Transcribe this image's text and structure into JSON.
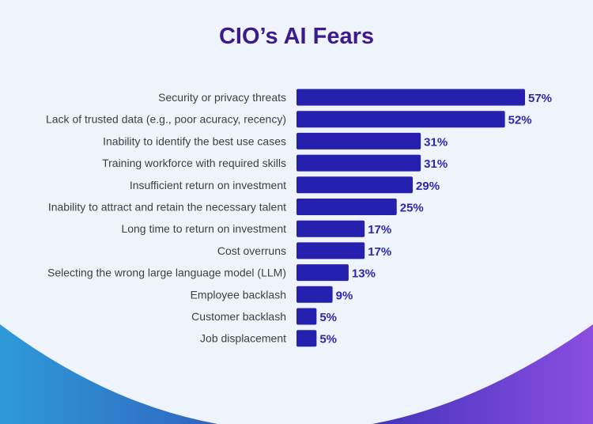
{
  "chart_data": {
    "type": "bar",
    "orientation": "horizontal",
    "title": "CIO’s AI Fears",
    "categories": [
      "Security or privacy threats",
      "Lack of trusted data (e.g., poor acuracy, recency)",
      "Inability to identify the best use cases",
      "Training workforce with required skills",
      "Insufficient return on investment",
      "Inability to attract and retain the necessary talent",
      "Long time to return on investment",
      "Cost overruns",
      "Selecting the wrong large language model (LLM)",
      "Employee backlash",
      "Customer backlash",
      "Job displacement"
    ],
    "values": [
      57,
      52,
      31,
      31,
      29,
      25,
      17,
      17,
      13,
      9,
      5,
      5
    ],
    "value_labels": [
      "57%",
      "52%",
      "31%",
      "31%",
      "29%",
      "25%",
      "17%",
      "17%",
      "13%",
      "9%",
      "5%",
      "5%"
    ],
    "xlabel": "",
    "ylabel": "",
    "grid": false,
    "colors": {
      "bar": "#2520ad",
      "title": "#3a1a8e",
      "value_label": "#2d27b0"
    }
  }
}
